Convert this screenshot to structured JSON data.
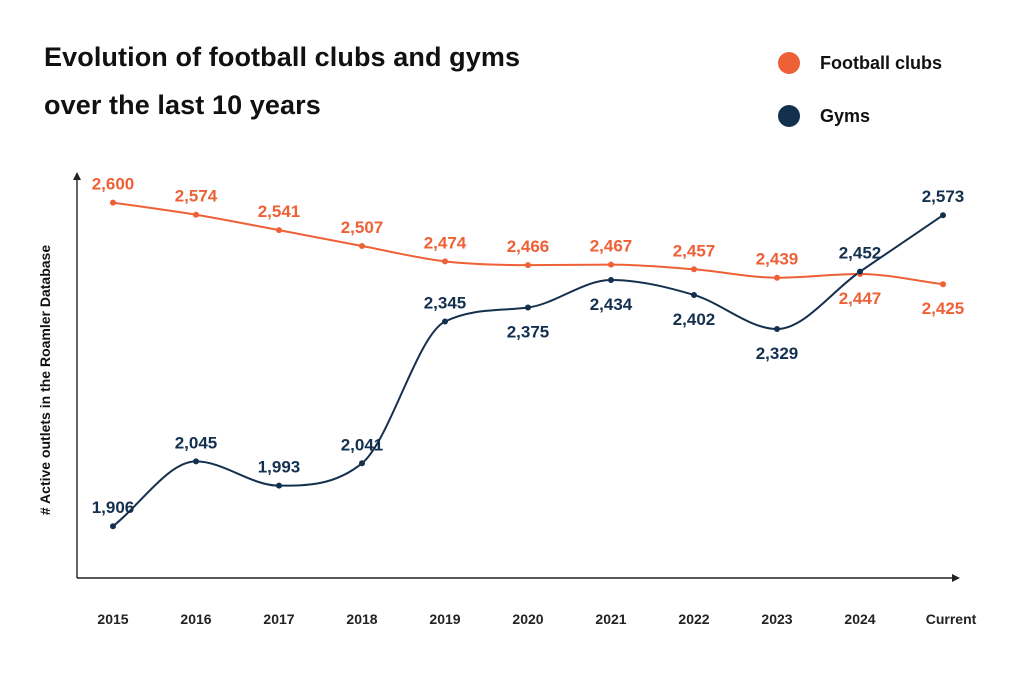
{
  "colors": {
    "football": "#ee6136",
    "gyms": "#14304f",
    "axis": "#222222"
  },
  "legend": [
    {
      "key": "football",
      "label": "Football clubs"
    },
    {
      "key": "gyms",
      "label": "Gyms"
    }
  ],
  "chart_data": {
    "type": "line",
    "title": "Evolution of football clubs and gyms over the last 10 years",
    "title_lines": [
      "Evolution of football clubs and gyms",
      "over the last 10 years"
    ],
    "ylabel": "# Active outlets in the Roamler Database",
    "xlabel": "",
    "categories": [
      "2015",
      "2016",
      "2017",
      "2018",
      "2019",
      "2020",
      "2021",
      "2022",
      "2023",
      "2024",
      "Current"
    ],
    "series": [
      {
        "name": "Football clubs",
        "key": "football",
        "values": [
          2600,
          2574,
          2541,
          2507,
          2474,
          2466,
          2467,
          2457,
          2439,
          2447,
          2425
        ],
        "labels": [
          "2,600",
          "2,574",
          "2,541",
          "2,507",
          "2,474",
          "2,466",
          "2,467",
          "2,457",
          "2,439",
          "2,447",
          "2,425"
        ],
        "label_pos": [
          "above",
          "above",
          "above",
          "above",
          "above",
          "above",
          "above",
          "above",
          "above",
          "below",
          "below"
        ]
      },
      {
        "name": "Gyms",
        "key": "gyms",
        "values": [
          1906,
          2045,
          1993,
          2041,
          2345,
          2375,
          2434,
          2402,
          2329,
          2452,
          2573
        ],
        "labels": [
          "1,906",
          "2,045",
          "1,993",
          "2,041",
          "2,345",
          "2,375",
          "2,434",
          "2,402",
          "2,329",
          "2,452",
          "2,573"
        ],
        "label_pos": [
          "above",
          "above",
          "above",
          "above",
          "above",
          "below",
          "below",
          "below",
          "below",
          "above",
          "above"
        ]
      }
    ],
    "ylim": [
      1795,
      2745
    ],
    "grid": false,
    "legend_position": "top-right"
  }
}
